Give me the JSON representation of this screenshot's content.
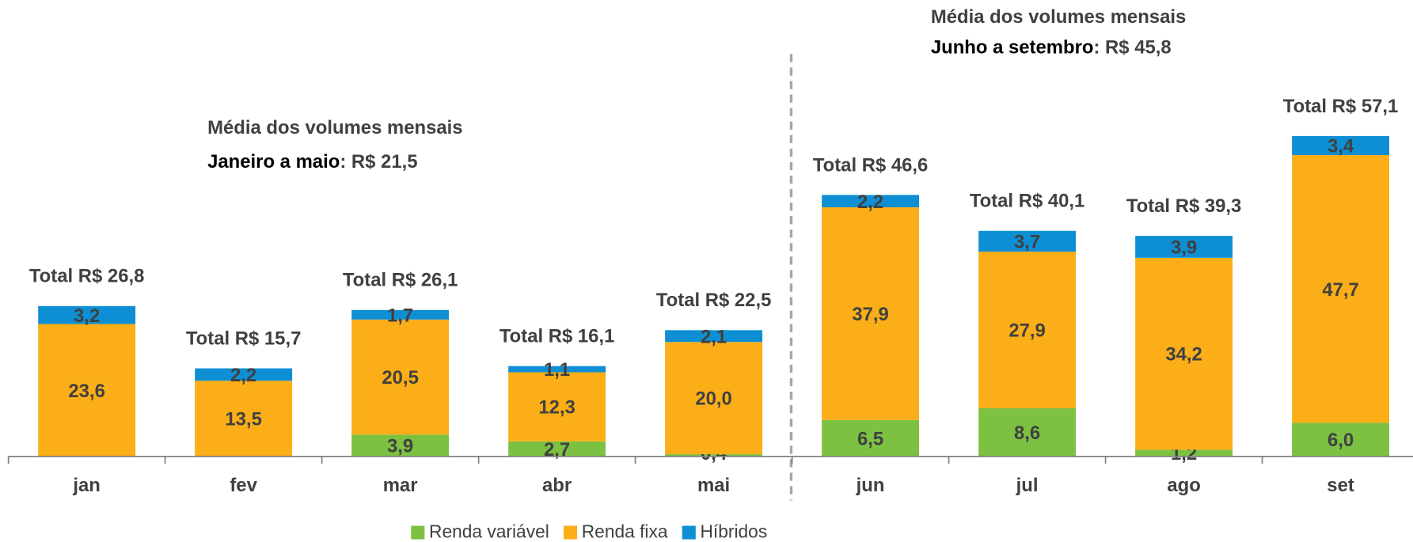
{
  "chart_data": {
    "type": "stacked_bar",
    "categories": [
      "jan",
      "fev",
      "mar",
      "abr",
      "mai",
      "jun",
      "jul",
      "ago",
      "set"
    ],
    "series": [
      {
        "name": "Renda variável",
        "color": "#7dc142",
        "values": [
          0,
          0,
          3.9,
          2.7,
          0.4,
          6.5,
          8.6,
          1.2,
          6.0
        ],
        "value_labels": [
          "-",
          "-",
          "3,9",
          "2,7",
          "0,4",
          "6,5",
          "8,6",
          "1,2",
          "6,0"
        ]
      },
      {
        "name": "Renda fixa",
        "color": "#fbae17",
        "values": [
          23.6,
          13.5,
          20.5,
          12.3,
          20.0,
          37.9,
          27.9,
          34.2,
          47.7
        ],
        "value_labels": [
          "23,6",
          "13,5",
          "20,5",
          "12,3",
          "20,0",
          "37,9",
          "27,9",
          "34,2",
          "47,7"
        ]
      },
      {
        "name": "Híbridos",
        "color": "#0e8fd4",
        "values": [
          3.2,
          2.2,
          1.7,
          1.1,
          2.1,
          2.2,
          3.7,
          3.9,
          3.4
        ],
        "value_labels": [
          "3,2",
          "2,2",
          "1,7",
          "1,1",
          "2,1",
          "2,2",
          "3,7",
          "3,9",
          "3,4"
        ]
      }
    ],
    "total_labels": [
      "Total R$ 26,8",
      "Total R$ 15,7",
      "Total R$ 26,1",
      "Total R$ 16,1",
      "Total R$ 22,5",
      "Total R$ 46,6",
      "Total R$ 40,1",
      "Total R$ 39,3",
      "Total R$ 57,1"
    ],
    "annotations": [
      {
        "line1": "Média dos volumes mensais",
        "period": "Janeiro a maio",
        "value": ": R$ 21,5"
      },
      {
        "line1": "Média dos volumes mensais",
        "period": "Junho a setembro",
        "value": ": R$ 45,8"
      }
    ],
    "ylim": [
      0,
      60
    ]
  }
}
